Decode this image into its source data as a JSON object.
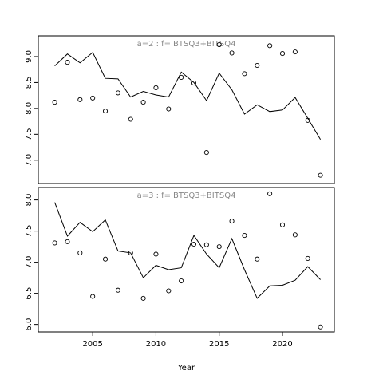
{
  "chart_data": [
    {
      "type": "line",
      "strip_label": "a=2  :  f=IBTSQ3+BITSQ4",
      "xlabel": "",
      "ylabel": "",
      "xlim": [
        2000.7,
        2024.1
      ],
      "ylim": [
        6.55,
        9.4
      ],
      "yticks": [
        7.0,
        7.5,
        8.0,
        8.5,
        9.0
      ],
      "ytick_labels": [
        "7.0",
        "7.5",
        "8.0",
        "8.5",
        "9.0"
      ],
      "grid": false,
      "series": [
        {
          "kind": "line",
          "x": [
            2002,
            2003,
            2004,
            2005,
            2006,
            2007,
            2008,
            2009,
            2010,
            2011,
            2012,
            2013,
            2014,
            2015,
            2016,
            2017,
            2018,
            2019,
            2020,
            2021,
            2022,
            2023
          ],
          "y": [
            8.82,
            9.05,
            8.88,
            9.08,
            8.58,
            8.57,
            8.22,
            8.33,
            8.26,
            8.22,
            8.7,
            8.5,
            8.15,
            8.68,
            8.36,
            7.89,
            8.07,
            7.94,
            7.97,
            8.21,
            7.81,
            7.4
          ]
        },
        {
          "kind": "points",
          "x": [
            2002,
            2003,
            2004,
            2005,
            2006,
            2007,
            2008,
            2009,
            2010,
            2011,
            2012,
            2013,
            2014,
            2015,
            2016,
            2017,
            2018,
            2019,
            2020,
            2021,
            2022,
            2023
          ],
          "y": [
            8.12,
            8.89,
            8.17,
            8.2,
            7.95,
            8.3,
            7.79,
            8.12,
            8.4,
            7.99,
            8.6,
            8.49,
            7.15,
            9.23,
            9.07,
            8.67,
            8.83,
            9.21,
            9.06,
            9.09,
            7.77,
            6.71
          ]
        }
      ]
    },
    {
      "type": "line",
      "strip_label": "a=3  :  f=IBTSQ3+BITSQ4",
      "xlabel": "Year",
      "ylabel": "",
      "xlim": [
        2000.7,
        2024.1
      ],
      "ylim": [
        5.88,
        8.2
      ],
      "xticks": [
        2005,
        2010,
        2015,
        2020
      ],
      "xtick_labels": [
        "2005",
        "2010",
        "2015",
        "2020"
      ],
      "yticks": [
        6.0,
        6.5,
        7.0,
        7.5,
        8.0
      ],
      "ytick_labels": [
        "6.0",
        "6.5",
        "7.0",
        "7.5",
        "8.0"
      ],
      "grid": false,
      "series": [
        {
          "kind": "line",
          "x": [
            2002,
            2003,
            2004,
            2005,
            2006,
            2007,
            2008,
            2009,
            2010,
            2011,
            2012,
            2013,
            2014,
            2015,
            2016,
            2017,
            2018,
            2019,
            2020,
            2021,
            2022,
            2023
          ],
          "y": [
            7.96,
            7.42,
            7.64,
            7.49,
            7.68,
            7.18,
            7.15,
            6.75,
            6.95,
            6.88,
            6.91,
            7.43,
            7.13,
            6.91,
            7.38,
            6.88,
            6.42,
            6.62,
            6.63,
            6.71,
            6.93,
            6.72
          ]
        },
        {
          "kind": "points",
          "x": [
            2002,
            2003,
            2004,
            2005,
            2006,
            2007,
            2008,
            2009,
            2010,
            2011,
            2012,
            2013,
            2014,
            2015,
            2016,
            2017,
            2018,
            2019,
            2020,
            2021,
            2022,
            2023
          ],
          "y": [
            7.31,
            7.33,
            7.15,
            6.45,
            7.05,
            6.55,
            7.15,
            6.42,
            7.13,
            6.54,
            6.7,
            7.29,
            7.28,
            7.25,
            7.66,
            7.43,
            7.05,
            8.1,
            7.6,
            7.44,
            7.06,
            5.96
          ]
        }
      ]
    }
  ]
}
